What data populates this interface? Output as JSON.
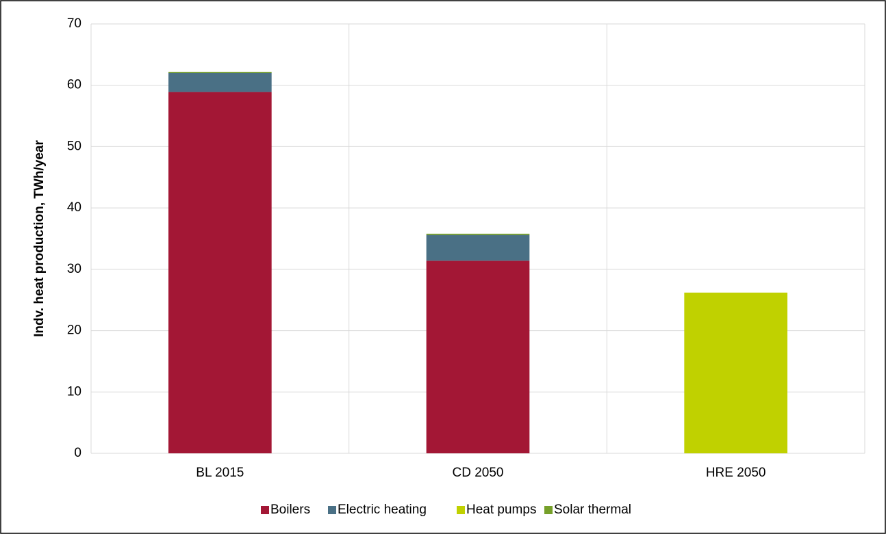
{
  "chart_data": {
    "type": "stacked_bar",
    "y_label": "Indv. heat production, TWh/year",
    "categories": [
      "BL 2015",
      "CD 2050",
      "HRE 2050"
    ],
    "series": [
      {
        "name": "Boilers",
        "color": "#a31735",
        "values": [
          58.9,
          31.4,
          0
        ]
      },
      {
        "name": "Electric heating",
        "color": "#4a7085",
        "values": [
          3.1,
          4.2,
          0
        ]
      },
      {
        "name": "Heat pumps",
        "color": "#c0d100",
        "values": [
          0,
          0,
          26.2
        ]
      },
      {
        "name": "Solar thermal",
        "color": "#76a02a",
        "values": [
          0.2,
          0.2,
          0
        ]
      }
    ],
    "ylim": [
      0,
      70
    ],
    "yticks": [
      0,
      10,
      20,
      30,
      40,
      50,
      60,
      70
    ],
    "grid": true,
    "legend": "bottom"
  }
}
